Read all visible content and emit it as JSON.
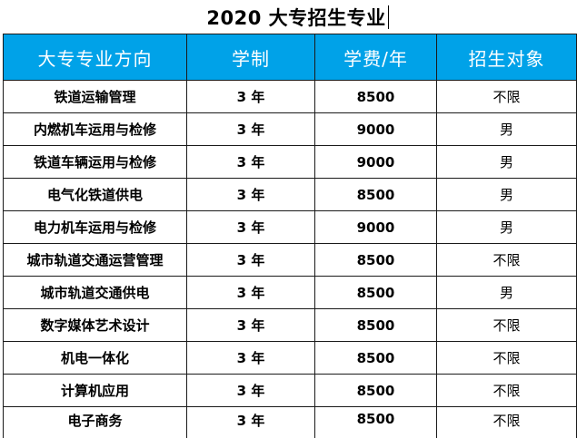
{
  "document": {
    "title": "2020 大专招生专业"
  },
  "table": {
    "headers": [
      "大专专业方向",
      "学制",
      "学费/年",
      "招生对象"
    ],
    "rows": [
      [
        "铁道运输管理",
        "3 年",
        "8500",
        "不限"
      ],
      [
        "内燃机车运用与检修",
        "3 年",
        "9000",
        "男"
      ],
      [
        "铁道车辆运用与检修",
        "3 年",
        "9000",
        "男"
      ],
      [
        "电气化铁道供电",
        "3 年",
        "8500",
        "男"
      ],
      [
        "电力机车运用与检修",
        "3 年",
        "9000",
        "男"
      ],
      [
        "城市轨道交通运营管理",
        "3 年",
        "8500",
        "不限"
      ],
      [
        "城市轨道交通供电",
        "3 年",
        "8500",
        "男"
      ],
      [
        "数字媒体艺术设计",
        "3 年",
        "8500",
        "不限"
      ],
      [
        "机电一体化",
        "3 年",
        "8500",
        "不限"
      ],
      [
        "计算机应用",
        "3 年",
        "8500",
        "不限"
      ],
      [
        "电子商务",
        "3 年",
        "8500",
        "不限"
      ]
    ]
  },
  "colors": {
    "header_background": "#00a2e8",
    "header_text": "#ffffff",
    "border": "#1a1a1a"
  }
}
